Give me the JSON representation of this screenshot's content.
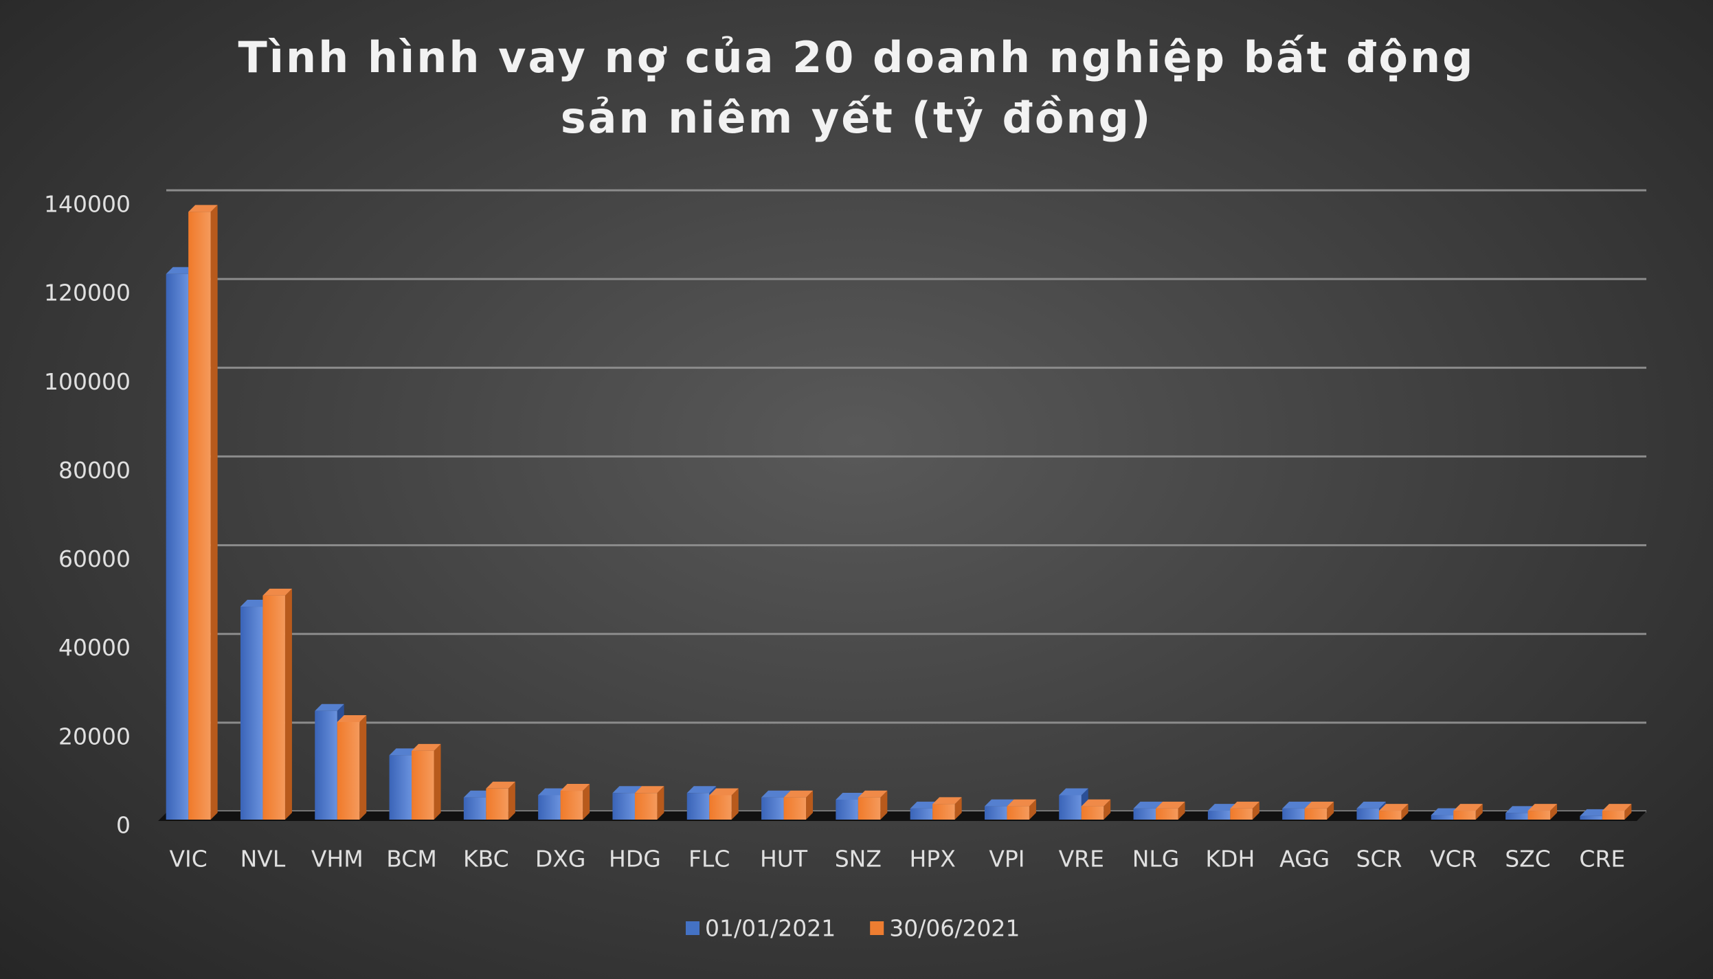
{
  "chart_data": {
    "type": "bar",
    "title": "Tình hình vay nợ của 20 doanh nghiệp bất động sản niêm yết (tỷ đồng)",
    "categories": [
      "VIC",
      "NVL",
      "VHM",
      "BCM",
      "KBC",
      "DXG",
      "HDG",
      "FLC",
      "HUT",
      "SNZ",
      "HPX",
      "VPI",
      "VRE",
      "NLG",
      "KDH",
      "AGG",
      "SCR",
      "VCR",
      "SZC",
      "CRE"
    ],
    "series": [
      {
        "name": "01/01/2021",
        "color": "#4472c4",
        "values": [
          123000,
          48000,
          24500,
          14500,
          5000,
          5500,
          6000,
          6000,
          5000,
          4500,
          2500,
          3000,
          5500,
          2500,
          2000,
          2500,
          2500,
          1000,
          1500,
          800
        ]
      },
      {
        "name": "30/06/2021",
        "color": "#ed7d31",
        "values": [
          137000,
          50500,
          22000,
          15500,
          7000,
          6500,
          6000,
          5500,
          5000,
          5000,
          3500,
          3000,
          3000,
          2500,
          2500,
          2500,
          2000,
          2000,
          2000,
          2000
        ]
      }
    ],
    "ylim": [
      0,
      140000
    ],
    "yticks": [
      0,
      20000,
      40000,
      60000,
      80000,
      100000,
      120000,
      140000
    ],
    "grid": true,
    "legend": "bottom"
  }
}
